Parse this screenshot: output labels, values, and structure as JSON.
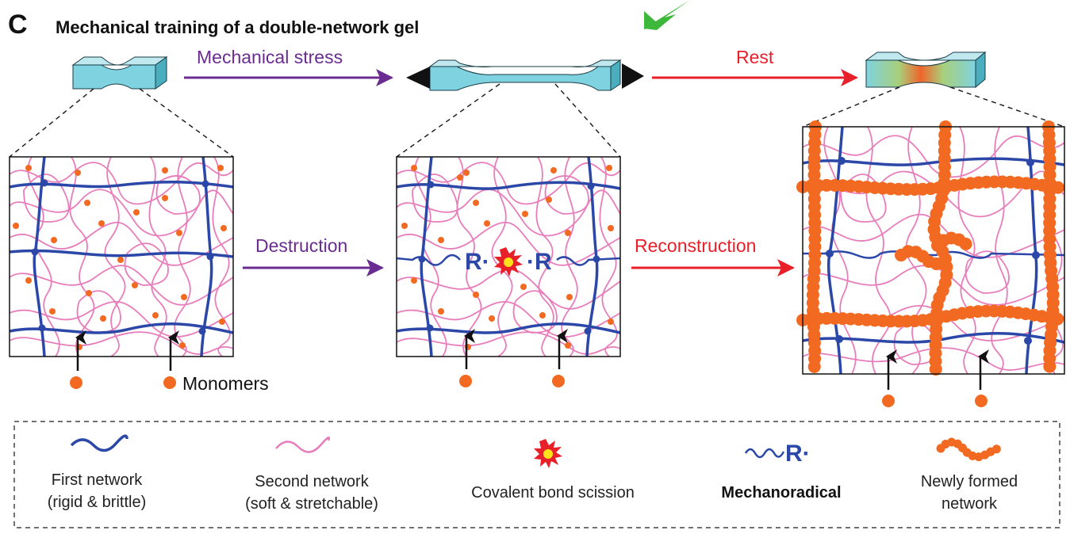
{
  "panel": {
    "letter": "C",
    "title": "Mechanical training of a double-network gel"
  },
  "steps": {
    "mechanical_stress": "Mechanical stress",
    "rest": "Rest",
    "destruction": "Destruction",
    "reconstruction": "Reconstruction"
  },
  "labels": {
    "monomers": "Monomers",
    "radical_left": "R·",
    "radical_right": "·R"
  },
  "legend": {
    "first_network": {
      "line1": "First network",
      "line2": "(rigid & brittle)"
    },
    "second_network": {
      "line1": "Second network",
      "line2": "(soft & stretchable)"
    },
    "bond_scission": {
      "line1": "Covalent bond scission"
    },
    "mechanoradical": {
      "line1": "Mechanoradical",
      "glyph": "R·"
    },
    "new_network": {
      "line1": "Newly formed",
      "line2": "network"
    }
  },
  "colors": {
    "first_network": "#2b47a8",
    "second_network": "#e87dbb",
    "monomer": "#f26a21",
    "purple_arrow": "#6a2c91",
    "red_arrow": "#e8202a",
    "specimen": "#7fd3e0",
    "green_arrow": "#3db83a"
  },
  "icons": [
    "green-pointer-arrow-icon",
    "starburst-icon",
    "dog-bone-specimen-icon"
  ]
}
